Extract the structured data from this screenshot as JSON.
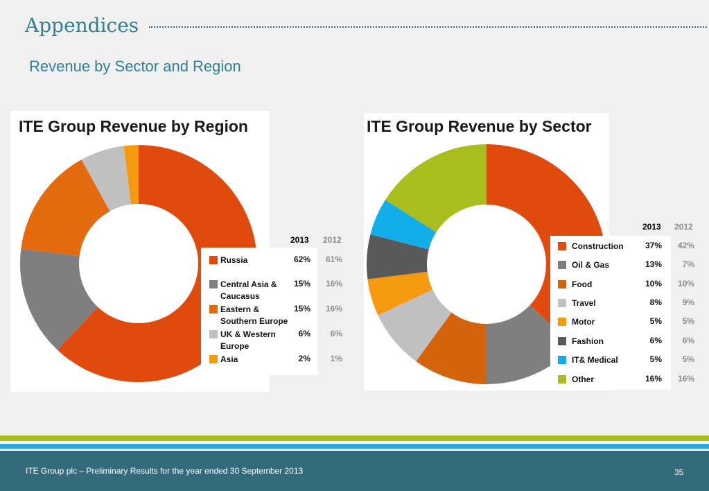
{
  "header": {
    "title": "Appendices",
    "subtitle": "Revenue by Sector and Region"
  },
  "region_chart": {
    "title": "ITE Group Revenue by Region",
    "year_current": "2013",
    "year_prior": "2012",
    "items": [
      {
        "label": "Russia",
        "v2013": "62%",
        "v2012": "61%",
        "color": "#e04a0c"
      },
      {
        "label": "Central Asia & Caucasus",
        "v2013": "15%",
        "v2012": "16%",
        "color": "#7f7f7f"
      },
      {
        "label": "Eastern & Southern Europe",
        "v2013": "15%",
        "v2012": "16%",
        "color": "#e36b0e"
      },
      {
        "label": "UK & Western Europe",
        "v2013": "6%",
        "v2012": "6%",
        "color": "#c0c0c0"
      },
      {
        "label": "Asia",
        "v2013": "2%",
        "v2012": "1%",
        "color": "#f5990f"
      }
    ]
  },
  "sector_chart": {
    "title": "ITE Group Revenue by Sector",
    "year_current": "2013",
    "year_prior": "2012",
    "items": [
      {
        "label": "Construction",
        "v2013": "37%",
        "v2012": "42%",
        "color": "#e04a0c"
      },
      {
        "label": "Oil & Gas",
        "v2013": "13%",
        "v2012": "7%",
        "color": "#7f7f7f"
      },
      {
        "label": "Food",
        "v2013": "10%",
        "v2012": "10%",
        "color": "#d4640c"
      },
      {
        "label": "Travel",
        "v2013": "8%",
        "v2012": "9%",
        "color": "#c0c0c0"
      },
      {
        "label": "Motor",
        "v2013": "5%",
        "v2012": "5%",
        "color": "#f5990f"
      },
      {
        "label": "Fashion",
        "v2013": "6%",
        "v2012": "6%",
        "color": "#595959"
      },
      {
        "label": "IT& Medical",
        "v2013": "5%",
        "v2012": "5%",
        "color": "#11aee9"
      },
      {
        "label": "Other",
        "v2013": "16%",
        "v2012": "16%",
        "color": "#a9be1c"
      }
    ]
  },
  "chart_data": [
    {
      "type": "pie",
      "title": "ITE Group Revenue by Region",
      "categories": [
        "Russia",
        "Central Asia & Caucasus",
        "Eastern & Southern Europe",
        "UK & Western Europe",
        "Asia"
      ],
      "series": [
        {
          "name": "2013",
          "values": [
            62,
            15,
            15,
            6,
            2
          ]
        },
        {
          "name": "2012",
          "values": [
            61,
            16,
            16,
            6,
            1
          ]
        }
      ]
    },
    {
      "type": "pie",
      "title": "ITE Group Revenue by Sector",
      "categories": [
        "Construction",
        "Oil & Gas",
        "Food",
        "Travel",
        "Motor",
        "Fashion",
        "IT& Medical",
        "Other"
      ],
      "series": [
        {
          "name": "2013",
          "values": [
            37,
            13,
            10,
            8,
            5,
            6,
            5,
            16
          ]
        },
        {
          "name": "2012",
          "values": [
            42,
            7,
            10,
            9,
            5,
            6,
            5,
            16
          ]
        }
      ]
    }
  ],
  "footer": {
    "text": "ITE Group plc – Preliminary Results for the year ended 30 September 2013",
    "page_number": "35"
  }
}
